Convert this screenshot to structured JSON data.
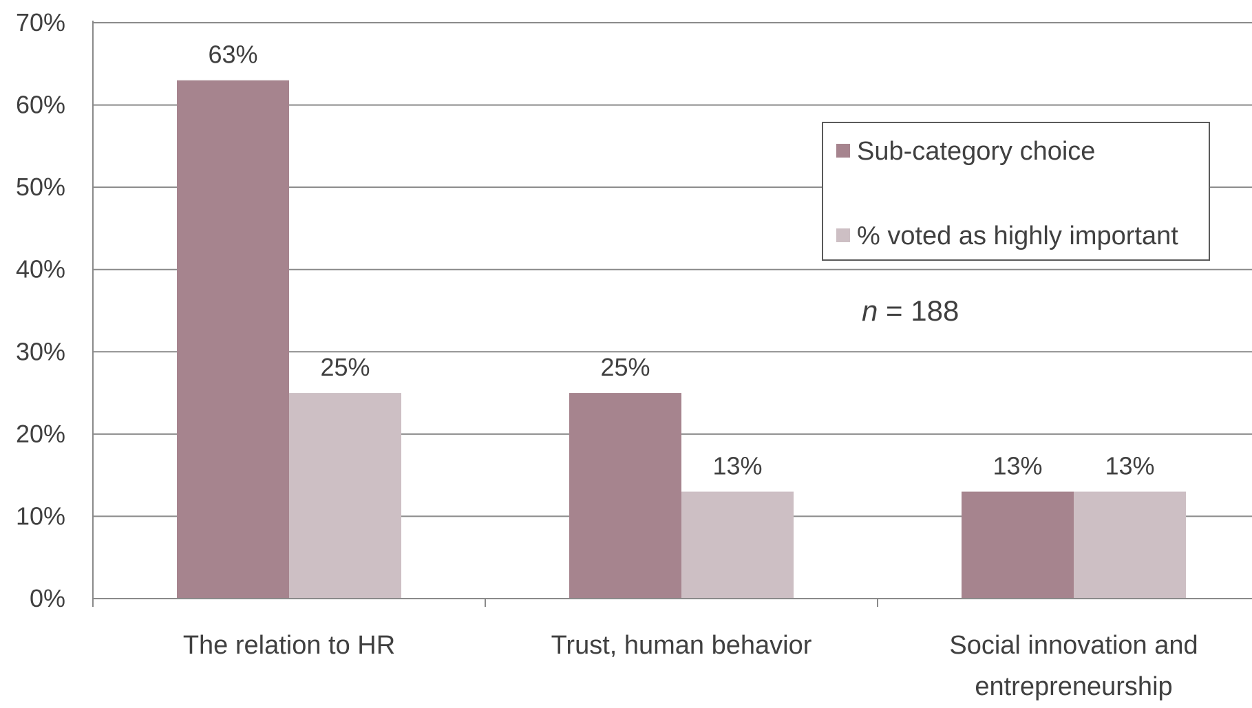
{
  "chart_data": {
    "type": "bar",
    "categories": [
      [
        "The relation to HR"
      ],
      [
        "Trust, human behavior"
      ],
      [
        "Social innovation and",
        "entrepreneurship"
      ]
    ],
    "series": [
      {
        "name": "Sub-category choice",
        "values": [
          63,
          25,
          13
        ],
        "labels": [
          "63%",
          "25%",
          "13%"
        ],
        "color": "#a6848e"
      },
      {
        "name": "% voted as highly important",
        "values": [
          25,
          13,
          13
        ],
        "labels": [
          "25%",
          "13%",
          "13%"
        ],
        "color": "#cdbfc4"
      }
    ],
    "ylim": [
      0,
      70
    ],
    "yticks": [
      0,
      10,
      20,
      30,
      40,
      50,
      60,
      70
    ],
    "ytick_labels": [
      "0%",
      "10%",
      "20%",
      "30%",
      "40%",
      "50%",
      "60%",
      "70%"
    ],
    "grid": true,
    "legend_position": "top-right",
    "annotation": {
      "italic": "n",
      "rest": " = 188"
    }
  }
}
